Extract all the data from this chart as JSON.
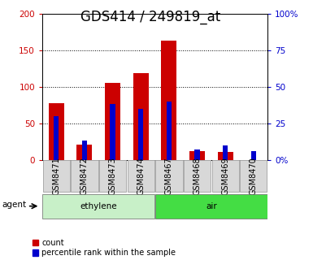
{
  "title": "GDS414 / 249819_at",
  "samples": [
    "GSM8471",
    "GSM8472",
    "GSM8473",
    "GSM8474",
    "GSM8467",
    "GSM8468",
    "GSM8469",
    "GSM8470"
  ],
  "counts": [
    77,
    21,
    105,
    119,
    163,
    12,
    11,
    0
  ],
  "percentiles": [
    30,
    13,
    38,
    35,
    40,
    7,
    10,
    6
  ],
  "groups": [
    {
      "label": "ethylene",
      "start": 0,
      "end": 4,
      "color": "#c8f0c8"
    },
    {
      "label": "air",
      "start": 4,
      "end": 8,
      "color": "#44dd44"
    }
  ],
  "ylim_left": [
    0,
    200
  ],
  "ylim_right": [
    0,
    100
  ],
  "yticks_left": [
    0,
    50,
    100,
    150,
    200
  ],
  "yticks_left_labels": [
    "0",
    "50",
    "100",
    "150",
    "200"
  ],
  "yticks_right": [
    0,
    25,
    50,
    75,
    100
  ],
  "yticks_right_labels": [
    "0%",
    "25",
    "50",
    "75",
    "100%"
  ],
  "bar_color_count": "#cc0000",
  "bar_color_percentile": "#0000cc",
  "red_bar_width": 0.55,
  "blue_bar_width": 0.18,
  "legend_count": "count",
  "legend_percentile": "percentile rank within the sample",
  "agent_label": "agent",
  "bg_color": "#ffffff",
  "plot_bg_color": "#ffffff",
  "tick_color_left": "#cc0000",
  "tick_color_right": "#0000cc",
  "title_fontsize": 12,
  "label_fontsize": 7.5,
  "sample_label_fontsize": 7.0,
  "cell_color": "#d8d8d8",
  "cell_edge_color": "#aaaaaa"
}
